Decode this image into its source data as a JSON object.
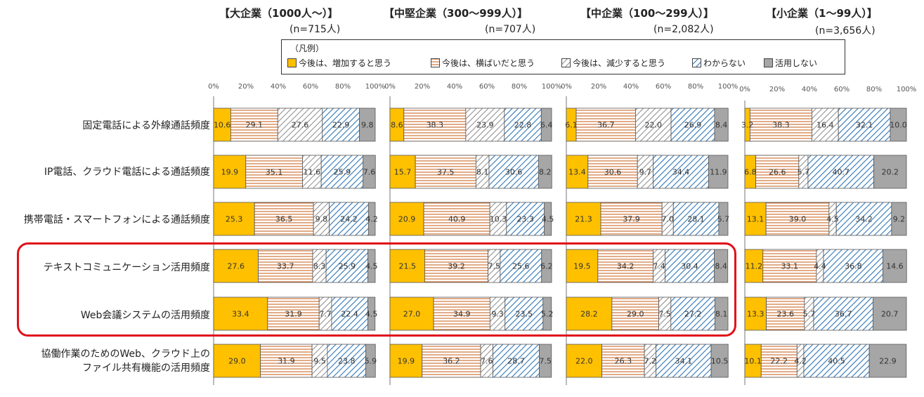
{
  "legend": {
    "title": "（凡例）",
    "items": [
      "今後は、増加すると思う",
      "今後は、横ばいだと思う",
      "今後は、減少すると思う",
      "わからない",
      "活用しない"
    ]
  },
  "colors": {
    "increase": "#ffc000",
    "flat_stripe": "#c55a11",
    "decrease_stripe": "#8c8c8c",
    "unknown_stripe": "#2e75b6",
    "notused": "#a6a6a6",
    "highlight": "#e0101a"
  },
  "chart_data": {
    "type": "bar",
    "orientation": "horizontal",
    "stacked": true,
    "xlim": [
      0,
      100
    ],
    "x_tick_labels": [
      "0%",
      "20%",
      "40%",
      "60%",
      "80%",
      "100%"
    ],
    "categories": [
      "固定電話による外線通話頻度",
      "IP電話、クラウド電話による通話頻度",
      "携帯電話・スマートフォンによる通話頻度",
      "テキストコミュニケーション活用頻度",
      "Web会議システムの活用頻度",
      "協働作業のためのWeb、クラウド上のファイル共有機能の活用頻度"
    ],
    "category_lines": [
      [
        "固定電話による外線通話頻度"
      ],
      [
        "IP電話、クラウド電話による通話頻度"
      ],
      [
        "携帯電話・スマートフォンによる通話頻度"
      ],
      [
        "テキストコミュニケーション活用頻度"
      ],
      [
        "Web会議システムの活用頻度"
      ],
      [
        "協働作業のためのWeb、クラウド上の",
        "ファイル共有機能の活用頻度"
      ]
    ],
    "highlighted_categories": [
      3,
      4
    ],
    "series_names": [
      "今後は、増加すると思う",
      "今後は、横ばいだと思う",
      "今後は、減少すると思う",
      "わからない",
      "活用しない"
    ],
    "groups": [
      {
        "title": "【大企業（1000人～）】",
        "n": "(n=715人)",
        "rows": [
          [
            10.6,
            29.1,
            27.6,
            22.9,
            9.8
          ],
          [
            19.9,
            35.1,
            11.6,
            25.9,
            7.6
          ],
          [
            25.3,
            36.5,
            9.8,
            24.2,
            4.2
          ],
          [
            27.6,
            33.7,
            8.3,
            25.9,
            4.5
          ],
          [
            33.4,
            31.9,
            7.7,
            22.4,
            4.5
          ],
          [
            29.0,
            31.9,
            9.5,
            23.8,
            5.9
          ]
        ]
      },
      {
        "title": "【中堅企業（300～999人）】",
        "n": "(n=707人)",
        "rows": [
          [
            8.6,
            38.3,
            23.9,
            22.8,
            6.4
          ],
          [
            15.7,
            37.5,
            8.1,
            30.6,
            8.2
          ],
          [
            20.9,
            40.9,
            10.3,
            23.3,
            4.5
          ],
          [
            21.5,
            39.2,
            7.5,
            25.6,
            6.2
          ],
          [
            27.0,
            34.9,
            9.3,
            23.5,
            5.2
          ],
          [
            19.9,
            36.2,
            7.6,
            28.7,
            7.5
          ]
        ]
      },
      {
        "title": "【中企業（100～299人）】",
        "n": "(n=2,082人)",
        "rows": [
          [
            6.1,
            36.7,
            22.0,
            26.9,
            8.4
          ],
          [
            13.4,
            30.6,
            9.7,
            34.4,
            11.9
          ],
          [
            21.3,
            37.9,
            7.0,
            28.1,
            5.7
          ],
          [
            19.5,
            34.2,
            7.4,
            30.4,
            8.4
          ],
          [
            28.2,
            29.0,
            7.5,
            27.2,
            8.1
          ],
          [
            22.0,
            26.3,
            7.2,
            34.1,
            10.5
          ]
        ]
      },
      {
        "title": "【小企業（1～99人）】",
        "n": "(n=3,656人)",
        "rows": [
          [
            3.2,
            38.3,
            16.4,
            32.1,
            10.0
          ],
          [
            6.8,
            26.6,
            5.7,
            40.7,
            20.2
          ],
          [
            13.1,
            39.0,
            4.5,
            34.2,
            9.2
          ],
          [
            11.2,
            33.1,
            4.4,
            36.8,
            14.6
          ],
          [
            13.3,
            23.6,
            5.7,
            36.7,
            20.7
          ],
          [
            10.1,
            22.2,
            4.2,
            40.5,
            22.9
          ]
        ]
      }
    ]
  }
}
